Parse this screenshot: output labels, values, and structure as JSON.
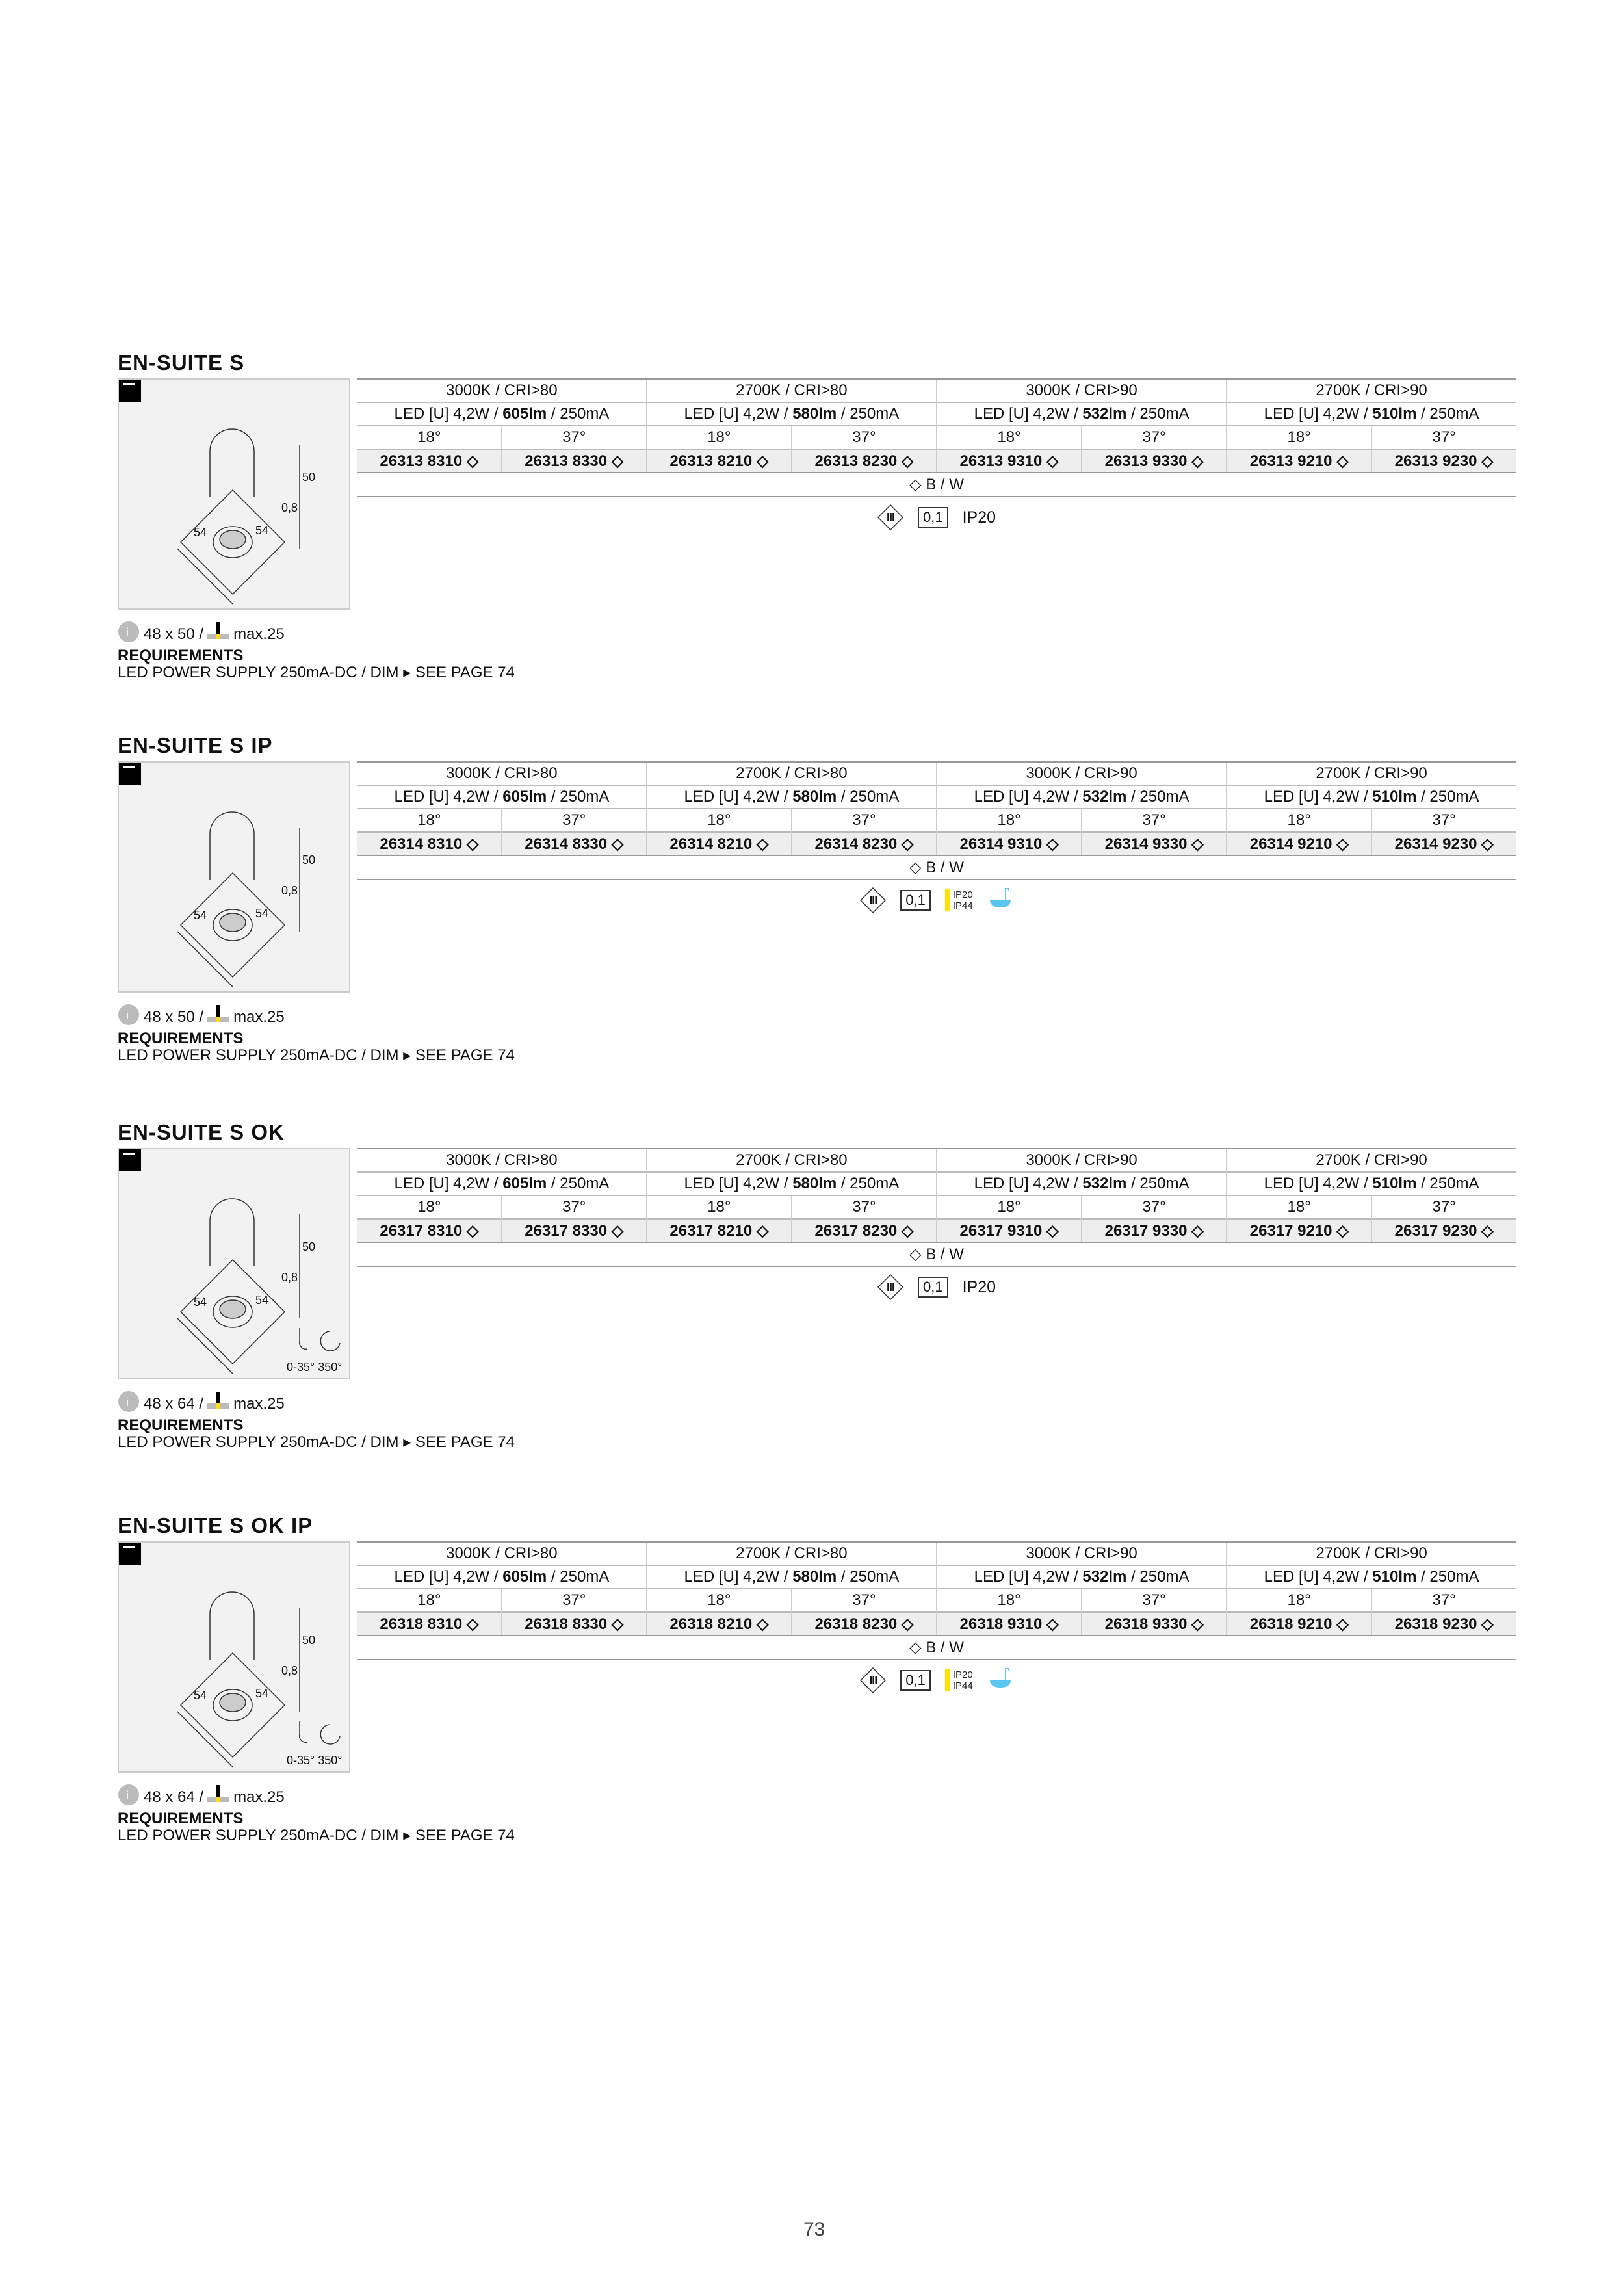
{
  "page_number": "73",
  "columns": [
    {
      "temp": "3000K / CRI>80",
      "led_pre": "LED [U] 4,2W / ",
      "lumen": "605lm",
      "led_post": " / 250mA",
      "suffix": [
        "8310",
        "8330"
      ]
    },
    {
      "temp": "2700K / CRI>80",
      "led_pre": "LED [U] 4,2W / ",
      "lumen": "580lm",
      "led_post": " / 250mA",
      "suffix": [
        "8210",
        "8230"
      ]
    },
    {
      "temp": "3000K / CRI>90",
      "led_pre": "LED [U] 4,2W / ",
      "lumen": "532lm",
      "led_post": " / 250mA",
      "suffix": [
        "9310",
        "9330"
      ]
    },
    {
      "temp": "2700K / CRI>90",
      "led_pre": "LED [U] 4,2W / ",
      "lumen": "510lm",
      "led_post": " / 250mA",
      "suffix": [
        "9210",
        "9230"
      ]
    }
  ],
  "beams": [
    "18°",
    "37°"
  ],
  "finish": "◇ B / W",
  "class_label": "III",
  "distance_label": "0,1",
  "requirements_title": "REQUIREMENTS",
  "requirements_text": "LED POWER SUPPLY 250mA-DC / DIM ▸ SEE PAGE 74",
  "drawing_dims": {
    "height": "50",
    "trim": "0,8",
    "width_a": "54",
    "width_b": "54",
    "tilt": "0-35° 350°"
  },
  "accent_colors": {
    "yellow": "#ffe000",
    "bath": "#5bc4f0"
  },
  "sections": [
    {
      "title": "EN-SUITE S",
      "prefix": "26313",
      "ip": "IP20",
      "ip2": "",
      "bath": false,
      "tilt": false,
      "cutout": "48 x 50 /",
      "max": "max.25"
    },
    {
      "title": "EN-SUITE S IP",
      "prefix": "26314",
      "ip": "IP20",
      "ip2": "IP44",
      "bath": true,
      "tilt": false,
      "cutout": "48 x 50 /",
      "max": "max.25"
    },
    {
      "title": "EN-SUITE S OK",
      "prefix": "26317",
      "ip": "IP20",
      "ip2": "",
      "bath": false,
      "tilt": true,
      "cutout": "48 x 64 /",
      "max": "max.25"
    },
    {
      "title": "EN-SUITE S OK IP",
      "prefix": "26318",
      "ip": "IP20",
      "ip2": "IP44",
      "bath": true,
      "tilt": true,
      "cutout": "48 x 64 /",
      "max": "max.25"
    }
  ]
}
